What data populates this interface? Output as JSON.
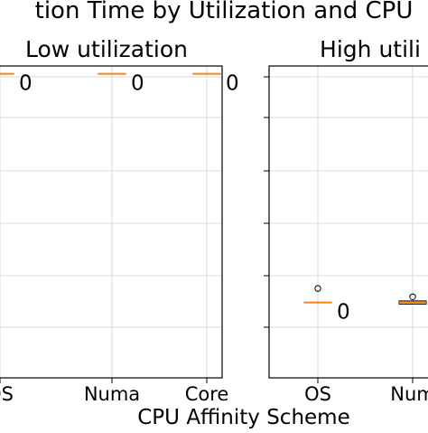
{
  "figure": {
    "title": "tion Time by Utilization and CPU",
    "xlabel": "CPU Affinity Scheme"
  },
  "colors": {
    "median": "#f58518",
    "box": "#000000",
    "grid": "#d9d9d9",
    "background": "#ffffff"
  },
  "chart_data": [
    {
      "type": "box",
      "title": "Low utilization",
      "categories": [
        "OS",
        "Numa",
        "Core"
      ],
      "ylim": [
        0,
        6
      ],
      "grid": true,
      "boxes": [
        {
          "category": "OS",
          "median": 5.85,
          "q1": 5.85,
          "q3": 5.85,
          "whisker_low": 5.85,
          "whisker_high": 5.85,
          "outliers": [],
          "label": "0"
        },
        {
          "category": "Numa",
          "median": 5.85,
          "q1": 5.85,
          "q3": 5.85,
          "whisker_low": 5.85,
          "whisker_high": 5.85,
          "outliers": [],
          "label": "0"
        },
        {
          "category": "Core",
          "median": 5.85,
          "q1": 5.85,
          "q3": 5.85,
          "whisker_low": 5.85,
          "whisker_high": 5.85,
          "outliers": [],
          "label": "0"
        }
      ]
    },
    {
      "type": "box",
      "title": "High utili",
      "categories": [
        "OS",
        "Num"
      ],
      "ylim": [
        0,
        6
      ],
      "grid": true,
      "boxes": [
        {
          "category": "OS",
          "median": 1.45,
          "q1": 1.45,
          "q3": 1.45,
          "whisker_low": 1.45,
          "whisker_high": 1.45,
          "outliers": [
            1.72
          ],
          "label": "0"
        },
        {
          "category": "Num",
          "median": 1.45,
          "q1": 1.42,
          "q3": 1.48,
          "whisker_low": 1.42,
          "whisker_high": 1.48,
          "outliers": [
            1.56
          ],
          "label": ""
        }
      ]
    }
  ]
}
